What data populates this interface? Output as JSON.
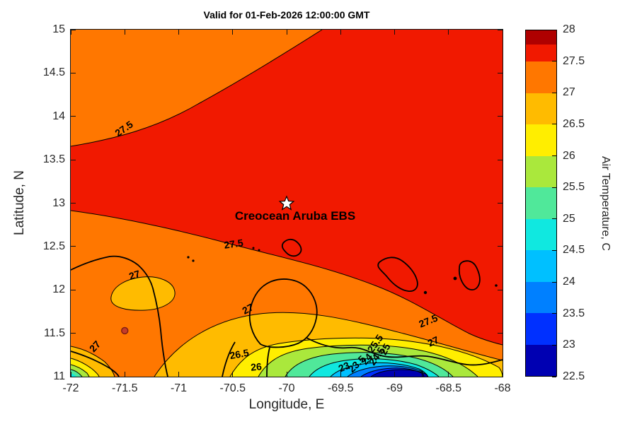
{
  "chart_data": {
    "type": "heatmap",
    "subtype": "filled-contour-map",
    "title": "Valid for 01-Feb-2026 12:00:00 GMT",
    "xlabel": "Longitude, E",
    "ylabel": "Latitude, N",
    "xlim": [
      -72,
      -68
    ],
    "ylim": [
      11,
      15
    ],
    "xticks": [
      -72,
      -71.5,
      -71,
      -70.5,
      -70,
      -69.5,
      -69,
      -68.5,
      -68
    ],
    "yticks": [
      11,
      11.5,
      12,
      12.5,
      13,
      13.5,
      14,
      14.5,
      15
    ],
    "grid": false,
    "temperature_range_c": [
      22.5,
      28
    ],
    "contour_levels": [
      23,
      23.5,
      24,
      24.5,
      25,
      25.5,
      26,
      26.5,
      27,
      27.5
    ],
    "colorbar": {
      "label": "Air Temperature, C",
      "position": "right",
      "ticks": [
        22.5,
        23,
        23.5,
        24,
        24.5,
        25,
        25.5,
        26,
        26.5,
        27,
        27.5,
        28
      ],
      "band_colors": [
        "#0000b2",
        "#0030ff",
        "#0080ff",
        "#00c0ff",
        "#10e8e0",
        "#50e89a",
        "#aae83c",
        "#ffee00",
        "#ffbb00",
        "#ff7700",
        "#f11900"
      ],
      "top_cap_color": "#af0000"
    },
    "contour_labels": [
      {
        "value": "27.5",
        "lon": -71.51,
        "lat": 13.86,
        "rot": -35
      },
      {
        "value": "27.5",
        "lon": -70.49,
        "lat": 12.53,
        "rot": -8
      },
      {
        "value": "27",
        "lon": -71.41,
        "lat": 12.17,
        "rot": -18
      },
      {
        "value": "27",
        "lon": -71.78,
        "lat": 11.35,
        "rot": -48
      },
      {
        "value": "27",
        "lon": -70.36,
        "lat": 11.78,
        "rot": -28
      },
      {
        "value": "26.5",
        "lon": -70.44,
        "lat": 11.26,
        "rot": -10
      },
      {
        "value": "26",
        "lon": -70.28,
        "lat": 11.11,
        "rot": -6
      },
      {
        "value": "25.5",
        "lon": -69.18,
        "lat": 11.38,
        "rot": -55
      },
      {
        "value": "25",
        "lon": -69.09,
        "lat": 11.32,
        "rot": -62
      },
      {
        "value": "24.5",
        "lon": -69.17,
        "lat": 11.24,
        "rot": -55
      },
      {
        "value": "24",
        "lon": -69.26,
        "lat": 11.2,
        "rot": -50
      },
      {
        "value": "23.5",
        "lon": -69.35,
        "lat": 11.15,
        "rot": -44
      },
      {
        "value": "23",
        "lon": -69.47,
        "lat": 11.11,
        "rot": -24
      },
      {
        "value": "27.5",
        "lon": -68.69,
        "lat": 11.64,
        "rot": -22
      },
      {
        "value": "27",
        "lon": -68.64,
        "lat": 11.41,
        "rot": -26
      }
    ],
    "station_marker": {
      "label": "Creocean Aruba EBS",
      "lon": -70,
      "lat": 13,
      "symbol": "star",
      "color": "white"
    },
    "aux_marker": {
      "lon": -71.5,
      "lat": 11.53,
      "symbol": "dot",
      "color": "#c43c2a"
    },
    "field_description": "Air temperature 27.5-28 C over most of the northern map; 27-27.5 C band in the northwest corner and along the southern coast; localized cold pool dropping through 26.5, 26, 25.5, 25, 24.5, 24, 23.5 and 23 C to a 22.5-23 C core near -69.3 E, 11 N; secondary cool patch at the southwest corner. Coastlines of the Guajira and Paraguana peninsulas and the islands of Aruba, Curacao and Bonaire are overlaid in black."
  }
}
